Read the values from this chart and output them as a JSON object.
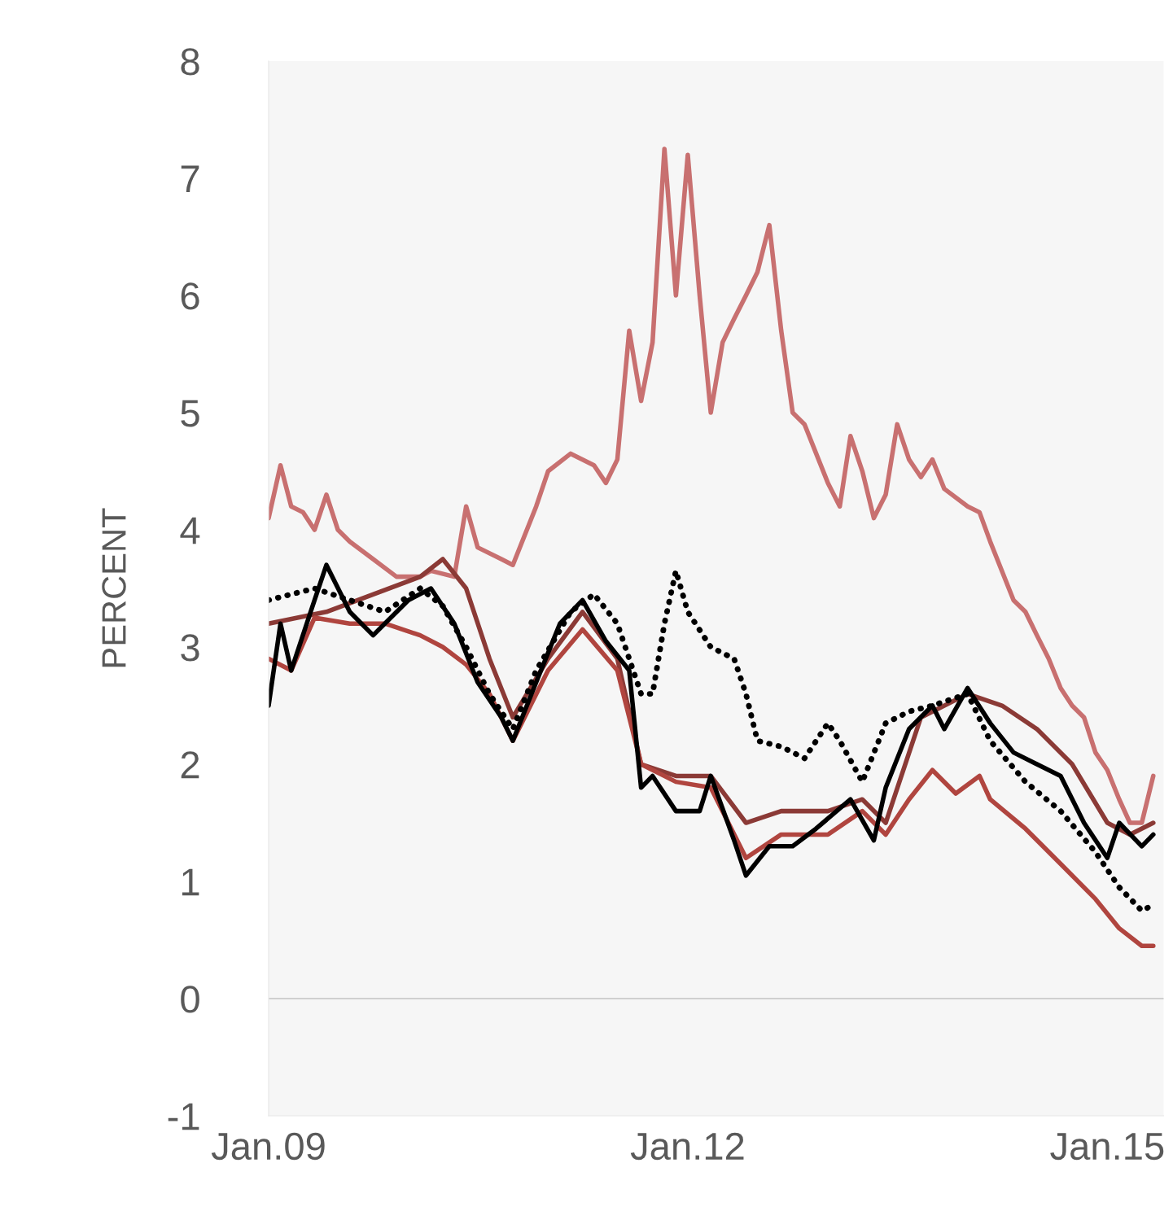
{
  "chart_data": {
    "type": "line",
    "ylabel": "PERCENT",
    "xlim": [
      "2009-01-01",
      "2015-05-28"
    ],
    "xticks": [
      {
        "value": "2009-01-01",
        "label": "Jan.09"
      },
      {
        "value": "2012-01-01",
        "label": "Jan.12"
      },
      {
        "value": "2015-01-01",
        "label": "Jan.15"
      }
    ],
    "ylim": [
      -1,
      8
    ],
    "yticks": [
      -1,
      0,
      1,
      2,
      3,
      4,
      5,
      6,
      7,
      8
    ],
    "grid": false,
    "legend": false,
    "ref_lines": [
      {
        "axis": "y",
        "value": 0,
        "color": "#d0d0d0"
      }
    ],
    "series": [
      {
        "color": "#c87070",
        "line_style": "solid",
        "x": [
          "2009-01",
          "2009-02",
          "2009-03",
          "2009-04",
          "2009-05",
          "2009-06",
          "2009-07",
          "2009-08",
          "2009-10",
          "2009-12",
          "2010-02",
          "2010-03",
          "2010-05",
          "2010-06",
          "2010-07",
          "2010-09",
          "2010-10",
          "2010-12",
          "2011-01",
          "2011-03",
          "2011-05",
          "2011-06",
          "2011-07",
          "2011-08",
          "2011-09",
          "2011-10",
          "2011-11",
          "2011-12",
          "2012-01",
          "2012-02",
          "2012-03",
          "2012-04",
          "2012-05",
          "2012-06",
          "2012-07",
          "2012-08",
          "2012-09",
          "2012-10",
          "2012-11",
          "2013-01",
          "2013-02",
          "2013-03",
          "2013-04",
          "2013-05",
          "2013-06",
          "2013-07",
          "2013-08",
          "2013-09",
          "2013-10",
          "2013-11",
          "2014-01",
          "2014-02",
          "2014-03",
          "2014-05",
          "2014-06",
          "2014-07",
          "2014-08",
          "2014-09",
          "2014-10",
          "2014-11",
          "2014-12",
          "2015-01",
          "2015-02",
          "2015-03",
          "2015-04",
          "2015-05"
        ],
        "values": [
          4.1,
          4.55,
          4.2,
          4.15,
          4.0,
          4.3,
          4.0,
          3.9,
          3.75,
          3.6,
          3.6,
          3.65,
          3.6,
          4.2,
          3.85,
          3.75,
          3.7,
          4.2,
          4.5,
          4.65,
          4.55,
          4.4,
          4.6,
          5.7,
          5.1,
          5.6,
          7.25,
          6.0,
          7.2,
          6.0,
          5.0,
          5.6,
          5.8,
          6.0,
          6.2,
          6.6,
          5.7,
          5.0,
          4.9,
          4.4,
          4.2,
          4.8,
          4.5,
          4.1,
          4.3,
          4.9,
          4.6,
          4.45,
          4.6,
          4.35,
          4.2,
          4.15,
          3.9,
          3.4,
          3.3,
          3.1,
          2.9,
          2.65,
          2.5,
          2.4,
          2.1,
          1.95,
          1.7,
          1.5,
          1.5,
          1.9
        ]
      },
      {
        "color": "#8b3a36",
        "line_style": "solid",
        "x": [
          "2009-01",
          "2009-06",
          "2010-02",
          "2010-04",
          "2010-06",
          "2010-08",
          "2010-10",
          "2011-01",
          "2011-04",
          "2011-07",
          "2011-09",
          "2011-12",
          "2012-03",
          "2012-06",
          "2012-09",
          "2013-01",
          "2013-04",
          "2013-06",
          "2013-09",
          "2014-01",
          "2014-04",
          "2014-07",
          "2014-10",
          "2015-01",
          "2015-03",
          "2015-05"
        ],
        "values": [
          3.2,
          3.3,
          3.6,
          3.75,
          3.5,
          2.9,
          2.4,
          2.9,
          3.3,
          2.9,
          2.0,
          1.9,
          1.9,
          1.5,
          1.6,
          1.6,
          1.7,
          1.5,
          2.4,
          2.6,
          2.5,
          2.3,
          2.0,
          1.5,
          1.4,
          1.5
        ]
      },
      {
        "color": "#b0453f",
        "line_style": "solid",
        "x": [
          "2009-01",
          "2009-03",
          "2009-05",
          "2009-08",
          "2009-11",
          "2010-02",
          "2010-04",
          "2010-06",
          "2010-08",
          "2010-10",
          "2011-01",
          "2011-04",
          "2011-07",
          "2011-09",
          "2011-12",
          "2012-03",
          "2012-06",
          "2012-09",
          "2013-01",
          "2013-04",
          "2013-06",
          "2013-08",
          "2013-10",
          "2013-12",
          "2014-02",
          "2014-03",
          "2014-06",
          "2014-09",
          "2014-12",
          "2015-02",
          "2015-04",
          "2015-05"
        ],
        "values": [
          2.9,
          2.8,
          3.25,
          3.2,
          3.2,
          3.1,
          3.0,
          2.85,
          2.6,
          2.2,
          2.8,
          3.15,
          2.8,
          2.0,
          1.85,
          1.8,
          1.2,
          1.4,
          1.4,
          1.6,
          1.4,
          1.7,
          1.95,
          1.75,
          1.9,
          1.7,
          1.45,
          1.15,
          0.85,
          0.6,
          0.45,
          0.45
        ]
      },
      {
        "color": "#000000",
        "line_style": "solid",
        "x": [
          "2009-01",
          "2009-02",
          "2009-03",
          "2009-05",
          "2009-06",
          "2009-08",
          "2009-10",
          "2010-01",
          "2010-03",
          "2010-05",
          "2010-07",
          "2010-09",
          "2010-10",
          "2010-12",
          "2011-02",
          "2011-04",
          "2011-06",
          "2011-08",
          "2011-09",
          "2011-10",
          "2011-12",
          "2012-02",
          "2012-03",
          "2012-05",
          "2012-06",
          "2012-08",
          "2012-10",
          "2012-12",
          "2013-03",
          "2013-05",
          "2013-06",
          "2013-08",
          "2013-10",
          "2013-11",
          "2014-01",
          "2014-03",
          "2014-05",
          "2014-07",
          "2014-09",
          "2014-11",
          "2015-01",
          "2015-02",
          "2015-04",
          "2015-05"
        ],
        "values": [
          2.5,
          3.2,
          2.8,
          3.4,
          3.7,
          3.3,
          3.1,
          3.4,
          3.5,
          3.2,
          2.7,
          2.4,
          2.2,
          2.7,
          3.2,
          3.4,
          3.05,
          2.8,
          1.8,
          1.9,
          1.6,
          1.6,
          1.9,
          1.35,
          1.05,
          1.3,
          1.3,
          1.45,
          1.7,
          1.35,
          1.8,
          2.3,
          2.5,
          2.3,
          2.65,
          2.35,
          2.1,
          2.0,
          1.9,
          1.5,
          1.2,
          1.5,
          1.3,
          1.4
        ]
      },
      {
        "color": "#000000",
        "line_style": "dotted",
        "x": [
          "2009-01",
          "2009-03",
          "2009-05",
          "2009-08",
          "2009-11",
          "2010-02",
          "2010-04",
          "2010-06",
          "2010-08",
          "2010-10",
          "2010-12",
          "2011-03",
          "2011-05",
          "2011-07",
          "2011-09",
          "2011-10",
          "2011-11",
          "2011-12",
          "2012-01",
          "2012-03",
          "2012-05",
          "2012-06",
          "2012-07",
          "2012-09",
          "2012-11",
          "2013-01",
          "2013-02",
          "2013-04",
          "2013-06",
          "2013-08",
          "2013-10",
          "2014-01",
          "2014-03",
          "2014-06",
          "2014-09",
          "2014-12",
          "2015-02",
          "2015-04",
          "2015-05"
        ],
        "values": [
          3.4,
          3.45,
          3.5,
          3.4,
          3.3,
          3.5,
          3.35,
          3.0,
          2.6,
          2.3,
          2.8,
          3.3,
          3.45,
          3.2,
          2.6,
          2.6,
          3.2,
          3.65,
          3.3,
          3.0,
          2.9,
          2.6,
          2.2,
          2.15,
          2.05,
          2.35,
          2.2,
          1.85,
          2.35,
          2.45,
          2.5,
          2.6,
          2.2,
          1.85,
          1.6,
          1.25,
          0.95,
          0.75,
          0.8
        ]
      }
    ]
  }
}
